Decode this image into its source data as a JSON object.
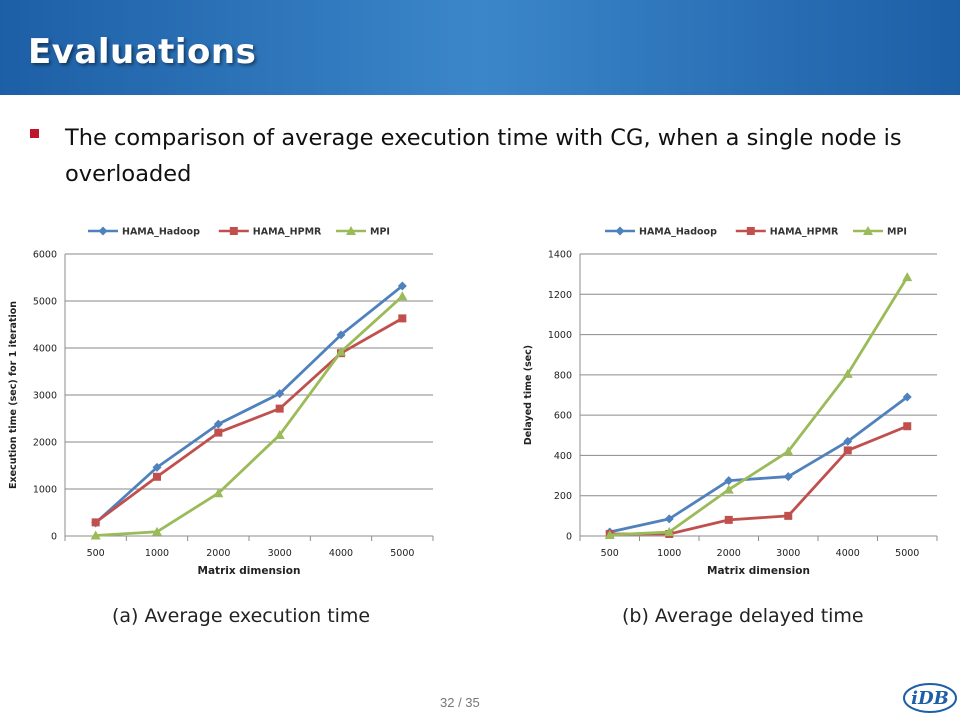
{
  "slide": {
    "title": "Evaluations",
    "bullet": "The comparison of average execution time with CG, when a single node is overloaded",
    "page_number": "32 / 35",
    "logo_text": "iDB"
  },
  "colors": {
    "header_dark": "#1d5fa6",
    "header_light": "#3b86c9",
    "bullet": "#c0142a",
    "hama_hadoop": "#4f81bd",
    "hama_hpmr": "#c0504d",
    "mpi": "#9bbb59"
  },
  "chart_data": [
    {
      "type": "line",
      "categories": [
        "500",
        "1000",
        "2000",
        "3000",
        "4000",
        "5000"
      ],
      "series": [
        {
          "name": "HAMA_Hadoop",
          "color": "#4f81bd",
          "marker": "diamond",
          "values": [
            280,
            1460,
            2380,
            3030,
            4280,
            5320
          ]
        },
        {
          "name": "HAMA_HPMR",
          "color": "#c0504d",
          "marker": "square",
          "values": [
            290,
            1260,
            2200,
            2710,
            3890,
            4630
          ]
        },
        {
          "name": "MPI",
          "color": "#9bbb59",
          "marker": "triangle",
          "values": [
            10,
            90,
            910,
            2150,
            3920,
            5100
          ]
        }
      ],
      "xlabel": "Matrix dimension",
      "ylabel": "Execution time (sec) for 1 iteration",
      "ylim": [
        0,
        6000
      ],
      "yticks": [
        0,
        1000,
        2000,
        3000,
        4000,
        5000,
        6000
      ],
      "grid": true,
      "legend": "top",
      "caption": "(a) Average execution time"
    },
    {
      "type": "line",
      "categories": [
        "500",
        "1000",
        "2000",
        "3000",
        "4000",
        "5000"
      ],
      "series": [
        {
          "name": "HAMA_Hadoop",
          "color": "#4f81bd",
          "marker": "diamond",
          "values": [
            20,
            85,
            275,
            295,
            470,
            690
          ]
        },
        {
          "name": "HAMA_HPMR",
          "color": "#c0504d",
          "marker": "square",
          "values": [
            10,
            10,
            80,
            100,
            425,
            545
          ]
        },
        {
          "name": "MPI",
          "color": "#9bbb59",
          "marker": "triangle",
          "values": [
            5,
            20,
            230,
            420,
            805,
            1285
          ]
        }
      ],
      "xlabel": "Matrix dimension",
      "ylabel": "Delayed time (sec)",
      "ylim": [
        0,
        1400
      ],
      "yticks": [
        0,
        200,
        400,
        600,
        800,
        1000,
        1200,
        1400
      ],
      "grid": true,
      "legend": "top",
      "caption": "(b) Average delayed time"
    }
  ]
}
